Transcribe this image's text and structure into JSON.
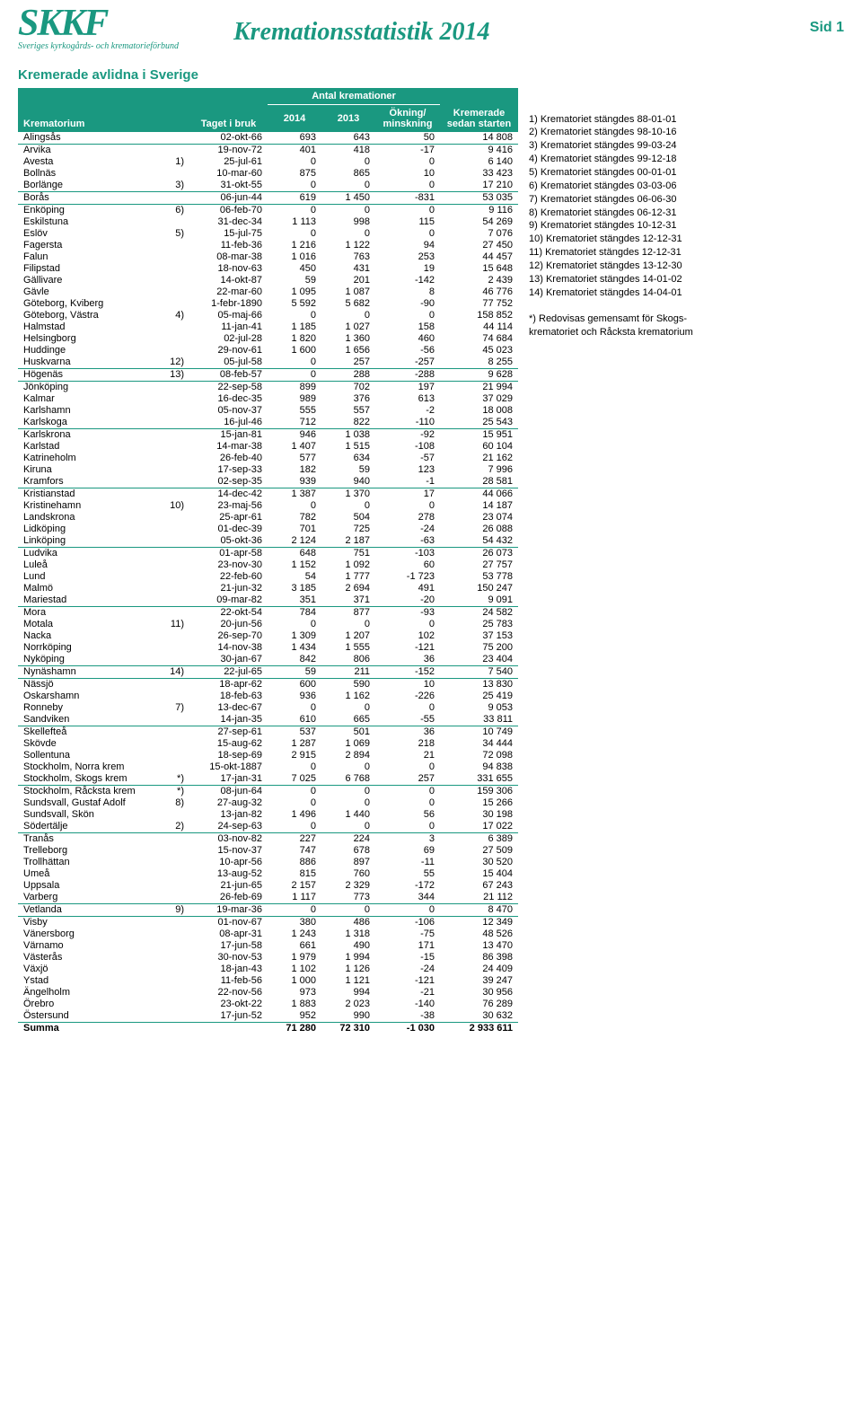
{
  "logo": {
    "main": "SKKF",
    "sub": "Sveriges kyrkogårds- och krematorieförbund"
  },
  "title": "Kremationsstatistik 2014",
  "page_label": "Sid 1",
  "section": "Kremerade avlidna i Sverige",
  "columns": {
    "krematorium": "Krematorium",
    "taget": "Taget i bruk",
    "antal": "Antal kremationer",
    "y2014": "2014",
    "y2013": "2013",
    "diff": "Ökning/ minskning",
    "total": "Kremerade sedan starten"
  },
  "hr_after": [
    "Alingsås",
    "Borlänge",
    "Borås",
    "Huskvarna",
    "Högenäs",
    "Karlskoga",
    "Kramfors",
    "Linköping",
    "Mariestad",
    "Nyköping",
    "Nynäshamn",
    "Sandviken",
    "Stockholm, Skogs krem",
    "Södertälje",
    "Varberg",
    "Vetlanda",
    "Östersund"
  ],
  "rows": [
    {
      "name": "Alingsås",
      "note": "",
      "date": "02-okt-66",
      "v14": "693",
      "v13": "643",
      "diff": "50",
      "tot": "14 808"
    },
    {
      "name": "Arvika",
      "note": "",
      "date": "19-nov-72",
      "v14": "401",
      "v13": "418",
      "diff": "-17",
      "tot": "9 416"
    },
    {
      "name": "Avesta",
      "note": "1)",
      "date": "25-jul-61",
      "v14": "0",
      "v13": "0",
      "diff": "0",
      "tot": "6 140"
    },
    {
      "name": "Bollnäs",
      "note": "",
      "date": "10-mar-60",
      "v14": "875",
      "v13": "865",
      "diff": "10",
      "tot": "33 423"
    },
    {
      "name": "Borlänge",
      "note": "3)",
      "date": "31-okt-55",
      "v14": "0",
      "v13": "0",
      "diff": "0",
      "tot": "17 210"
    },
    {
      "name": "Borås",
      "note": "",
      "date": "06-jun-44",
      "v14": "619",
      "v13": "1 450",
      "diff": "-831",
      "tot": "53 035"
    },
    {
      "name": "Enköping",
      "note": "6)",
      "date": "06-feb-70",
      "v14": "0",
      "v13": "0",
      "diff": "0",
      "tot": "9 116"
    },
    {
      "name": "Eskilstuna",
      "note": "",
      "date": "31-dec-34",
      "v14": "1 113",
      "v13": "998",
      "diff": "115",
      "tot": "54 269"
    },
    {
      "name": "Eslöv",
      "note": "5)",
      "date": "15-jul-75",
      "v14": "0",
      "v13": "0",
      "diff": "0",
      "tot": "7 076"
    },
    {
      "name": "Fagersta",
      "note": "",
      "date": "11-feb-36",
      "v14": "1 216",
      "v13": "1 122",
      "diff": "94",
      "tot": "27 450"
    },
    {
      "name": "Falun",
      "note": "",
      "date": "08-mar-38",
      "v14": "1 016",
      "v13": "763",
      "diff": "253",
      "tot": "44 457"
    },
    {
      "name": "Filipstad",
      "note": "",
      "date": "18-nov-63",
      "v14": "450",
      "v13": "431",
      "diff": "19",
      "tot": "15 648"
    },
    {
      "name": "Gällivare",
      "note": "",
      "date": "14-okt-87",
      "v14": "59",
      "v13": "201",
      "diff": "-142",
      "tot": "2 439"
    },
    {
      "name": "Gävle",
      "note": "",
      "date": "22-mar-60",
      "v14": "1 095",
      "v13": "1 087",
      "diff": "8",
      "tot": "46 776"
    },
    {
      "name": "Göteborg, Kviberg",
      "note": "",
      "date": "1-febr-1890",
      "v14": "5 592",
      "v13": "5 682",
      "diff": "-90",
      "tot": "77 752"
    },
    {
      "name": "Göteborg, Västra",
      "note": "4)",
      "date": "05-maj-66",
      "v14": "0",
      "v13": "0",
      "diff": "0",
      "tot": "158 852"
    },
    {
      "name": "Halmstad",
      "note": "",
      "date": "11-jan-41",
      "v14": "1 185",
      "v13": "1 027",
      "diff": "158",
      "tot": "44 114"
    },
    {
      "name": "Helsingborg",
      "note": "",
      "date": "02-jul-28",
      "v14": "1 820",
      "v13": "1 360",
      "diff": "460",
      "tot": "74 684"
    },
    {
      "name": "Huddinge",
      "note": "",
      "date": "29-nov-61",
      "v14": "1 600",
      "v13": "1 656",
      "diff": "-56",
      "tot": "45 023"
    },
    {
      "name": "Huskvarna",
      "note": "12)",
      "date": "05-jul-58",
      "v14": "0",
      "v13": "257",
      "diff": "-257",
      "tot": "8 255"
    },
    {
      "name": "Högenäs",
      "note": "13)",
      "date": "08-feb-57",
      "v14": "0",
      "v13": "288",
      "diff": "-288",
      "tot": "9 628"
    },
    {
      "name": "Jönköping",
      "note": "",
      "date": "22-sep-58",
      "v14": "899",
      "v13": "702",
      "diff": "197",
      "tot": "21 994"
    },
    {
      "name": "Kalmar",
      "note": "",
      "date": "16-dec-35",
      "v14": "989",
      "v13": "376",
      "diff": "613",
      "tot": "37 029"
    },
    {
      "name": "Karlshamn",
      "note": "",
      "date": "05-nov-37",
      "v14": "555",
      "v13": "557",
      "diff": "-2",
      "tot": "18 008"
    },
    {
      "name": "Karlskoga",
      "note": "",
      "date": "16-jul-46",
      "v14": "712",
      "v13": "822",
      "diff": "-110",
      "tot": "25 543"
    },
    {
      "name": "Karlskrona",
      "note": "",
      "date": "15-jan-81",
      "v14": "946",
      "v13": "1 038",
      "diff": "-92",
      "tot": "15 951"
    },
    {
      "name": "Karlstad",
      "note": "",
      "date": "14-mar-38",
      "v14": "1 407",
      "v13": "1 515",
      "diff": "-108",
      "tot": "60 104"
    },
    {
      "name": "Katrineholm",
      "note": "",
      "date": "26-feb-40",
      "v14": "577",
      "v13": "634",
      "diff": "-57",
      "tot": "21 162"
    },
    {
      "name": "Kiruna",
      "note": "",
      "date": "17-sep-33",
      "v14": "182",
      "v13": "59",
      "diff": "123",
      "tot": "7 996"
    },
    {
      "name": "Kramfors",
      "note": "",
      "date": "02-sep-35",
      "v14": "939",
      "v13": "940",
      "diff": "-1",
      "tot": "28 581"
    },
    {
      "name": "Kristianstad",
      "note": "",
      "date": "14-dec-42",
      "v14": "1 387",
      "v13": "1 370",
      "diff": "17",
      "tot": "44 066"
    },
    {
      "name": "Kristinehamn",
      "note": "10)",
      "date": "23-maj-56",
      "v14": "0",
      "v13": "0",
      "diff": "0",
      "tot": "14 187"
    },
    {
      "name": "Landskrona",
      "note": "",
      "date": "25-apr-61",
      "v14": "782",
      "v13": "504",
      "diff": "278",
      "tot": "23 074"
    },
    {
      "name": "Lidköping",
      "note": "",
      "date": "01-dec-39",
      "v14": "701",
      "v13": "725",
      "diff": "-24",
      "tot": "26 088"
    },
    {
      "name": "Linköping",
      "note": "",
      "date": "05-okt-36",
      "v14": "2 124",
      "v13": "2 187",
      "diff": "-63",
      "tot": "54 432"
    },
    {
      "name": "Ludvika",
      "note": "",
      "date": "01-apr-58",
      "v14": "648",
      "v13": "751",
      "diff": "-103",
      "tot": "26 073"
    },
    {
      "name": "Luleå",
      "note": "",
      "date": "23-nov-30",
      "v14": "1 152",
      "v13": "1 092",
      "diff": "60",
      "tot": "27 757"
    },
    {
      "name": "Lund",
      "note": "",
      "date": "22-feb-60",
      "v14": "54",
      "v13": "1 777",
      "diff": "-1 723",
      "tot": "53 778"
    },
    {
      "name": "Malmö",
      "note": "",
      "date": "21-jun-32",
      "v14": "3 185",
      "v13": "2 694",
      "diff": "491",
      "tot": "150 247"
    },
    {
      "name": "Mariestad",
      "note": "",
      "date": "09-mar-82",
      "v14": "351",
      "v13": "371",
      "diff": "-20",
      "tot": "9 091"
    },
    {
      "name": "Mora",
      "note": "",
      "date": "22-okt-54",
      "v14": "784",
      "v13": "877",
      "diff": "-93",
      "tot": "24 582"
    },
    {
      "name": "Motala",
      "note": "11)",
      "date": "20-jun-56",
      "v14": "0",
      "v13": "0",
      "diff": "0",
      "tot": "25 783"
    },
    {
      "name": "Nacka",
      "note": "",
      "date": "26-sep-70",
      "v14": "1 309",
      "v13": "1 207",
      "diff": "102",
      "tot": "37 153"
    },
    {
      "name": "Norrköping",
      "note": "",
      "date": "14-nov-38",
      "v14": "1 434",
      "v13": "1 555",
      "diff": "-121",
      "tot": "75 200"
    },
    {
      "name": "Nyköping",
      "note": "",
      "date": "30-jan-67",
      "v14": "842",
      "v13": "806",
      "diff": "36",
      "tot": "23 404"
    },
    {
      "name": "Nynäshamn",
      "note": "14)",
      "date": "22-jul-65",
      "v14": "59",
      "v13": "211",
      "diff": "-152",
      "tot": "7 540"
    },
    {
      "name": "Nässjö",
      "note": "",
      "date": "18-apr-62",
      "v14": "600",
      "v13": "590",
      "diff": "10",
      "tot": "13 830"
    },
    {
      "name": "Oskarshamn",
      "note": "",
      "date": "18-feb-63",
      "v14": "936",
      "v13": "1 162",
      "diff": "-226",
      "tot": "25 419"
    },
    {
      "name": "Ronneby",
      "note": "7)",
      "date": "13-dec-67",
      "v14": "0",
      "v13": "0",
      "diff": "0",
      "tot": "9 053"
    },
    {
      "name": "Sandviken",
      "note": "",
      "date": "14-jan-35",
      "v14": "610",
      "v13": "665",
      "diff": "-55",
      "tot": "33 811"
    },
    {
      "name": "Skellefteå",
      "note": "",
      "date": "27-sep-61",
      "v14": "537",
      "v13": "501",
      "diff": "36",
      "tot": "10 749"
    },
    {
      "name": "Skövde",
      "note": "",
      "date": "15-aug-62",
      "v14": "1 287",
      "v13": "1 069",
      "diff": "218",
      "tot": "34 444"
    },
    {
      "name": "Sollentuna",
      "note": "",
      "date": "18-sep-69",
      "v14": "2 915",
      "v13": "2 894",
      "diff": "21",
      "tot": "72 098"
    },
    {
      "name": "Stockholm, Norra krem",
      "note": "",
      "date": "15-okt-1887",
      "v14": "0",
      "v13": "0",
      "diff": "0",
      "tot": "94 838"
    },
    {
      "name": "Stockholm, Skogs krem",
      "note": "*)",
      "date": "17-jan-31",
      "v14": "7 025",
      "v13": "6 768",
      "diff": "257",
      "tot": "331 655"
    },
    {
      "name": "Stockholm, Råcksta krem",
      "note": "*)",
      "date": "08-jun-64",
      "v14": "0",
      "v13": "0",
      "diff": "0",
      "tot": "159 306"
    },
    {
      "name": "Sundsvall, Gustaf Adolf",
      "note": "8)",
      "date": "27-aug-32",
      "v14": "0",
      "v13": "0",
      "diff": "0",
      "tot": "15 266"
    },
    {
      "name": "Sundsvall,  Skön",
      "note": "",
      "date": "13-jan-82",
      "v14": "1 496",
      "v13": "1 440",
      "diff": "56",
      "tot": "30 198"
    },
    {
      "name": "Södertälje",
      "note": "2)",
      "date": "24-sep-63",
      "v14": "0",
      "v13": "0",
      "diff": "0",
      "tot": "17 022"
    },
    {
      "name": "Tranås",
      "note": "",
      "date": "03-nov-82",
      "v14": "227",
      "v13": "224",
      "diff": "3",
      "tot": "6 389"
    },
    {
      "name": "Trelleborg",
      "note": "",
      "date": "15-nov-37",
      "v14": "747",
      "v13": "678",
      "diff": "69",
      "tot": "27 509"
    },
    {
      "name": "Trollhättan",
      "note": "",
      "date": "10-apr-56",
      "v14": "886",
      "v13": "897",
      "diff": "-11",
      "tot": "30 520"
    },
    {
      "name": "Umeå",
      "note": "",
      "date": "13-aug-52",
      "v14": "815",
      "v13": "760",
      "diff": "55",
      "tot": "15 404"
    },
    {
      "name": "Uppsala",
      "note": "",
      "date": "21-jun-65",
      "v14": "2 157",
      "v13": "2 329",
      "diff": "-172",
      "tot": "67 243"
    },
    {
      "name": "Varberg",
      "note": "",
      "date": "26-feb-69",
      "v14": "1 117",
      "v13": "773",
      "diff": "344",
      "tot": "21 112"
    },
    {
      "name": "Vetlanda",
      "note": "9)",
      "date": "19-mar-36",
      "v14": "0",
      "v13": "0",
      "diff": "0",
      "tot": "8 470"
    },
    {
      "name": "Visby",
      "note": "",
      "date": "01-nov-67",
      "v14": "380",
      "v13": "486",
      "diff": "-106",
      "tot": "12 349"
    },
    {
      "name": "Vänersborg",
      "note": "",
      "date": "08-apr-31",
      "v14": "1 243",
      "v13": "1 318",
      "diff": "-75",
      "tot": "48 526"
    },
    {
      "name": "Värnamo",
      "note": "",
      "date": "17-jun-58",
      "v14": "661",
      "v13": "490",
      "diff": "171",
      "tot": "13 470"
    },
    {
      "name": "Västerås",
      "note": "",
      "date": "30-nov-53",
      "v14": "1 979",
      "v13": "1 994",
      "diff": "-15",
      "tot": "86 398"
    },
    {
      "name": "Växjö",
      "note": "",
      "date": "18-jan-43",
      "v14": "1 102",
      "v13": "1 126",
      "diff": "-24",
      "tot": "24 409"
    },
    {
      "name": "Ystad",
      "note": "",
      "date": "11-feb-56",
      "v14": "1 000",
      "v13": "1 121",
      "diff": "-121",
      "tot": "39 247"
    },
    {
      "name": "Ängelholm",
      "note": "",
      "date": "22-nov-56",
      "v14": "973",
      "v13": "994",
      "diff": "-21",
      "tot": "30 956"
    },
    {
      "name": "Örebro",
      "note": "",
      "date": "23-okt-22",
      "v14": "1 883",
      "v13": "2 023",
      "diff": "-140",
      "tot": "76 289"
    },
    {
      "name": "Östersund",
      "note": "",
      "date": "17-jun-52",
      "v14": "952",
      "v13": "990",
      "diff": "-38",
      "tot": "30 632"
    }
  ],
  "sum": {
    "label": "Summa",
    "v14": "71 280",
    "v13": "72 310",
    "diff": "-1 030",
    "tot": "2 933 611"
  },
  "footnotes": [
    "1) Krematoriet stängdes 88-01-01",
    "2) Krematoriet stängdes 98-10-16",
    "3) Krematoriet stängdes 99-03-24",
    "4) Krematoriet stängdes 99-12-18",
    "5) Krematoriet stängdes 00-01-01",
    "6) Krematoriet stängdes 03-03-06",
    "7) Krematoriet stängdes 06-06-30",
    "8) Krematoriet stängdes 06-12-31",
    "9) Krematoriet stängdes 10-12-31",
    "10) Krematoriet stängdes 12-12-31",
    "11) Krematoriet stängdes 12-12-31",
    "12) Krematoriet stängdes 13-12-30",
    "13) Krematoriet stängdes 14-01-02",
    "14) Krematoriet stängdes 14-04-01",
    "",
    "*)   Redovisas gemensamt för Skogs-",
    "      krematoriet och Råcksta krematorium"
  ],
  "colors": {
    "brand": "#1a9880",
    "text": "#000000",
    "bg": "#ffffff"
  }
}
